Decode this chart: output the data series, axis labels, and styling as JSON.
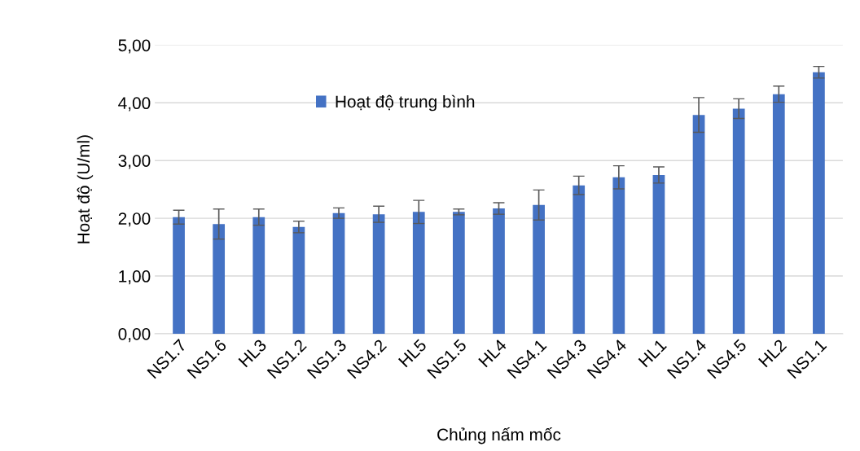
{
  "chart_data": {
    "type": "bar",
    "xlabel": "Chủng nấm mốc",
    "ylabel": "Hoạt độ (U/ml)",
    "categories": [
      "NS1.7",
      "NS1.6",
      "HL3",
      "NS1.2",
      "NS1.3",
      "NS4.2",
      "HL5",
      "NS1.5",
      "HL4",
      "NS4.1",
      "NS4.3",
      "NS4.4",
      "HL1",
      "NS1.4",
      "NS4.5",
      "HL2",
      "NS1.1"
    ],
    "series": [
      {
        "name": "Hoạt độ trung bình",
        "color": "#4472c4",
        "values": [
          2.02,
          1.9,
          2.02,
          1.85,
          2.09,
          2.07,
          2.11,
          2.11,
          2.17,
          2.23,
          2.57,
          2.71,
          2.75,
          3.79,
          3.9,
          4.15,
          4.53
        ],
        "errors": [
          0.12,
          0.26,
          0.14,
          0.1,
          0.09,
          0.14,
          0.2,
          0.05,
          0.1,
          0.26,
          0.16,
          0.2,
          0.14,
          0.3,
          0.17,
          0.14,
          0.1
        ]
      }
    ],
    "ylim": [
      0,
      5
    ],
    "yticks": [
      {
        "value": 0,
        "label": "0,00"
      },
      {
        "value": 1,
        "label": "1,00"
      },
      {
        "value": 2,
        "label": "2,00"
      },
      {
        "value": 3,
        "label": "3,00"
      },
      {
        "value": 4,
        "label": "4,00"
      },
      {
        "value": 5,
        "label": "5,00"
      }
    ],
    "grid": "y",
    "legend": "top"
  }
}
